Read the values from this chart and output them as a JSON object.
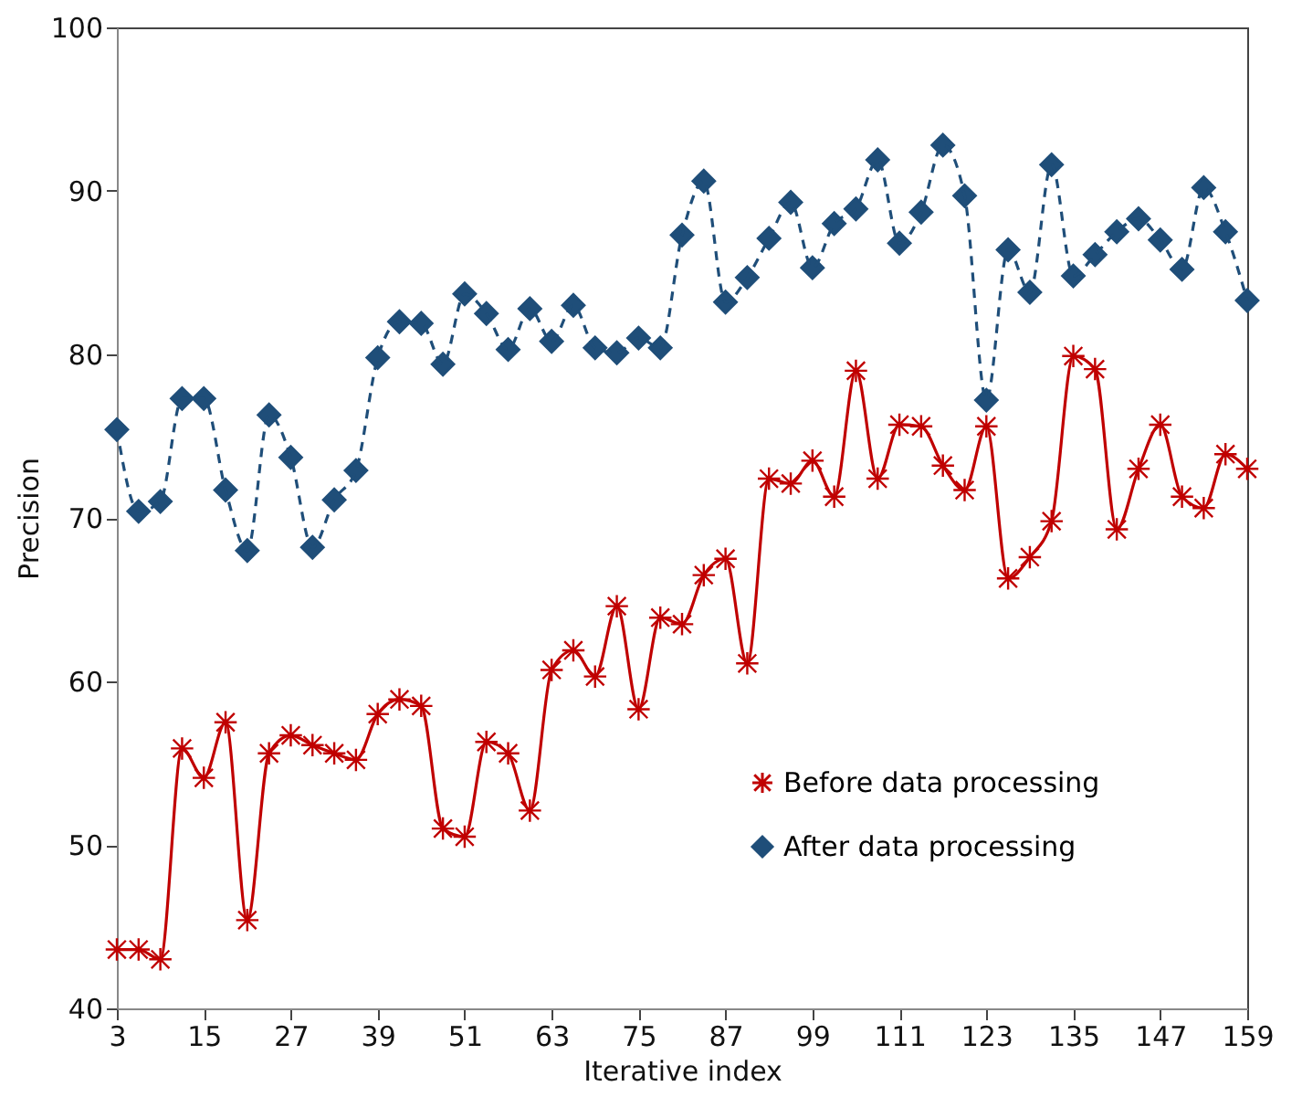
{
  "chart_data": {
    "type": "line",
    "xlabel": "Iterative index",
    "ylabel": "Precision",
    "x": [
      3,
      6,
      9,
      12,
      15,
      18,
      21,
      24,
      27,
      30,
      33,
      36,
      39,
      42,
      45,
      48,
      51,
      54,
      57,
      60,
      63,
      66,
      69,
      72,
      75,
      78,
      81,
      84,
      87,
      90,
      93,
      96,
      99,
      102,
      105,
      108,
      111,
      114,
      117,
      120,
      123,
      126,
      129,
      132,
      135,
      138,
      141,
      144,
      147,
      150,
      153,
      156,
      159
    ],
    "series": [
      {
        "name": "Before data processing",
        "color": "#c00000",
        "marker": "cross",
        "line_style": "solid",
        "values": [
          43.6,
          43.6,
          43.0,
          55.9,
          54.1,
          57.5,
          45.4,
          55.6,
          56.7,
          56.1,
          55.6,
          55.2,
          58.0,
          58.9,
          58.5,
          51.0,
          50.5,
          56.3,
          55.6,
          52.1,
          60.7,
          61.9,
          60.3,
          64.6,
          58.3,
          63.9,
          63.5,
          66.5,
          67.5,
          61.1,
          72.4,
          72.1,
          73.5,
          71.3,
          79.0,
          72.4,
          75.7,
          75.6,
          73.2,
          71.7,
          75.6,
          66.3,
          67.6,
          69.8,
          79.9,
          79.1,
          69.3,
          73.0,
          75.7,
          71.3,
          70.6,
          73.9,
          73.0
        ]
      },
      {
        "name": "After data processing",
        "color": "#1f4e79",
        "marker": "diamond",
        "line_style": "dashed",
        "values": [
          75.4,
          70.4,
          71.0,
          77.3,
          77.3,
          71.7,
          68.0,
          76.3,
          73.7,
          68.2,
          71.1,
          72.9,
          79.8,
          82.0,
          81.9,
          79.4,
          83.7,
          82.5,
          80.3,
          82.8,
          80.8,
          83.0,
          80.4,
          80.1,
          81.0,
          80.4,
          87.3,
          90.6,
          83.2,
          84.7,
          87.1,
          89.3,
          85.3,
          88.0,
          88.9,
          91.9,
          86.8,
          88.7,
          92.8,
          89.7,
          77.2,
          86.4,
          83.8,
          91.6,
          84.8,
          86.1,
          87.5,
          88.3,
          87.0,
          85.2,
          90.2,
          87.5,
          83.3
        ]
      }
    ],
    "xlim": [
      3,
      159
    ],
    "xticks": [
      3,
      15,
      27,
      39,
      51,
      63,
      75,
      87,
      99,
      111,
      123,
      135,
      147,
      159
    ],
    "ylim": [
      40,
      100
    ],
    "yticks": [
      40,
      50,
      60,
      70,
      80,
      90,
      100
    ],
    "grid": false,
    "legend": "bottom right"
  }
}
